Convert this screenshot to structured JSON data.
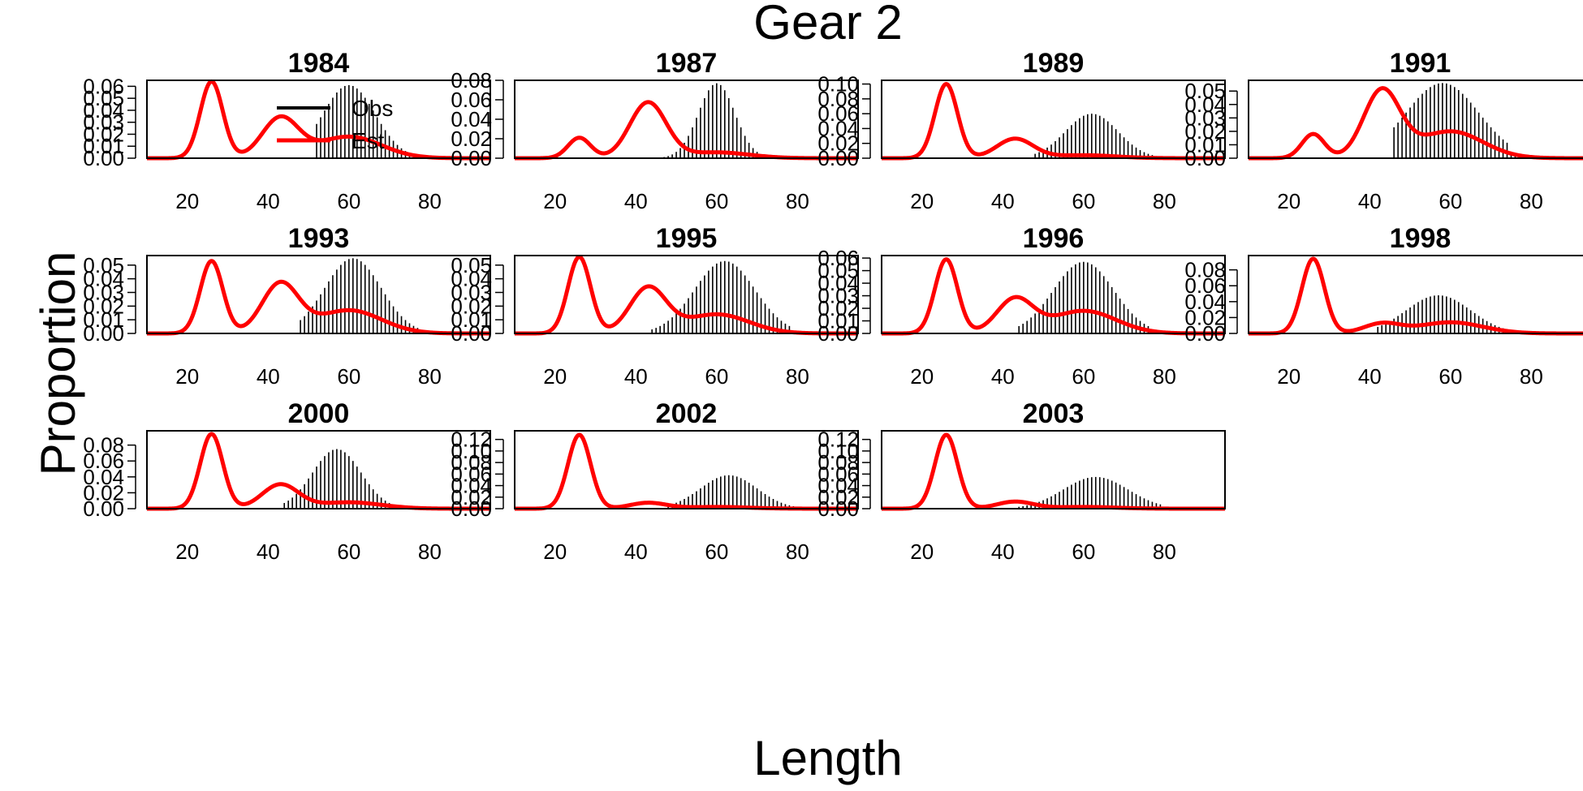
{
  "chart_data": {
    "type": "bar+line",
    "title": "Gear 2",
    "xlabel": "Length",
    "ylabel": "Proportion",
    "xlim": [
      10,
      95
    ],
    "x_ticks": [
      20,
      40,
      60,
      80
    ],
    "grid": false,
    "legend": {
      "placement": "top-right of first panel",
      "entries": [
        {
          "label": "Obs",
          "kind": "bar",
          "color": "#000000"
        },
        {
          "label": "Est",
          "kind": "line",
          "color": "#ff0000"
        }
      ]
    },
    "colors": {
      "observed": "#000000",
      "estimated": "#ff0000"
    },
    "estimated_components": [
      {
        "name": "",
        "mean": 26,
        "sd": 2.8
      },
      {
        "name": "",
        "mean": 43,
        "sd": 4.5
      },
      {
        "name": "",
        "mean": 60,
        "sd": 8
      }
    ],
    "panels": [
      {
        "year": "1984",
        "ylim": [
          0,
          0.065
        ],
        "y_ticks": [
          "0.00",
          "0.01",
          "0.02",
          "0.03",
          "0.04",
          "0.05",
          "0.06"
        ],
        "observed": {
          "shape": "gaussian",
          "mean": 60,
          "sd": 6.5,
          "peak": 0.061,
          "x_min": 52,
          "x_max": 88
        },
        "estimated": {
          "peak_values": [
            0.064,
            0.033,
            0.018
          ]
        }
      },
      {
        "year": "1987",
        "ylim": [
          0,
          0.08
        ],
        "y_ticks": [
          "0.00",
          "0.02",
          "0.04",
          "0.06",
          "0.08"
        ],
        "observed": {
          "shape": "gaussian",
          "mean": 60,
          "sd": 4.5,
          "peak": 0.077,
          "x_min": 44,
          "x_max": 92
        },
        "estimated": {
          "peak_values": [
            0.021,
            0.057,
            0.006
          ]
        }
      },
      {
        "year": "1989",
        "ylim": [
          0,
          0.105
        ],
        "y_ticks": [
          "0.00",
          "0.02",
          "0.04",
          "0.06",
          "0.08",
          "0.10"
        ],
        "observed": {
          "shape": "gaussian",
          "mean": 62,
          "sd": 6.5,
          "peak": 0.06,
          "x_min": 48,
          "x_max": 82
        },
        "estimated": {
          "peak_values": [
            0.1,
            0.026,
            0.004
          ]
        }
      },
      {
        "year": "1991",
        "ylim": [
          0,
          0.058
        ],
        "y_ticks": [
          "0.00",
          "0.01",
          "0.02",
          "0.03",
          "0.04",
          "0.05"
        ],
        "observed": {
          "shape": "gaussian",
          "mean": 58,
          "sd": 9,
          "peak": 0.056,
          "x_min": 46,
          "x_max": 84
        },
        "estimated": {
          "peak_values": [
            0.018,
            0.05,
            0.02
          ]
        }
      },
      {
        "year": "1993",
        "ylim": [
          0,
          0.057
        ],
        "y_ticks": [
          "0.00",
          "0.01",
          "0.02",
          "0.03",
          "0.04",
          "0.05"
        ],
        "observed": {
          "shape": "gaussian",
          "mean": 61,
          "sd": 7,
          "peak": 0.055,
          "x_min": 48,
          "x_max": 86
        },
        "estimated": {
          "peak_values": [
            0.053,
            0.036,
            0.017
          ]
        }
      },
      {
        "year": "1995",
        "ylim": [
          0,
          0.057
        ],
        "y_ticks": [
          "0.00",
          "0.01",
          "0.02",
          "0.03",
          "0.04",
          "0.05"
        ],
        "observed": {
          "shape": "gaussian",
          "mean": 62,
          "sd": 7.5,
          "peak": 0.053,
          "x_min": 44,
          "x_max": 88
        },
        "estimated": {
          "peak_values": [
            0.056,
            0.033,
            0.014
          ]
        }
      },
      {
        "year": "1996",
        "ylim": [
          0,
          0.062
        ],
        "y_ticks": [
          "0.00",
          "0.01",
          "0.02",
          "0.03",
          "0.04",
          "0.05",
          "0.06"
        ],
        "observed": {
          "shape": "gaussian",
          "mean": 60,
          "sd": 7.5,
          "peak": 0.057,
          "x_min": 44,
          "x_max": 88
        },
        "estimated": {
          "peak_values": [
            0.059,
            0.027,
            0.018
          ]
        }
      },
      {
        "year": "1998",
        "ylim": [
          0,
          0.098
        ],
        "y_ticks": [
          "0.00",
          "0.02",
          "0.04",
          "0.06",
          "0.08"
        ],
        "observed": {
          "shape": "gaussian",
          "mean": 57,
          "sd": 8,
          "peak": 0.048,
          "x_min": 42,
          "x_max": 82
        },
        "estimated": {
          "peak_values": [
            0.094,
            0.012,
            0.014
          ]
        }
      },
      {
        "year": "2000",
        "ylim": [
          0,
          0.098
        ],
        "y_ticks": [
          "0.00",
          "0.02",
          "0.04",
          "0.06",
          "0.08"
        ],
        "observed": {
          "shape": "gaussian",
          "mean": 57,
          "sd": 6,
          "peak": 0.075,
          "x_min": 44,
          "x_max": 90
        },
        "estimated": {
          "peak_values": [
            0.094,
            0.03,
            0.008
          ]
        }
      },
      {
        "year": "2002",
        "ylim": [
          0,
          0.135
        ],
        "y_ticks": [
          "0.00",
          "0.02",
          "0.04",
          "0.06",
          "0.08",
          "0.10",
          "0.12"
        ],
        "observed": {
          "shape": "gaussian",
          "mean": 63,
          "sd": 7,
          "peak": 0.058,
          "x_min": 48,
          "x_max": 86
        },
        "estimated": {
          "peak_values": [
            0.128,
            0.01,
            0.003
          ]
        }
      },
      {
        "year": "2003",
        "ylim": [
          0,
          0.135
        ],
        "y_ticks": [
          "0.00",
          "0.02",
          "0.04",
          "0.06",
          "0.08",
          "0.10",
          "0.12"
        ],
        "observed": {
          "shape": "gaussian",
          "mean": 63,
          "sd": 8,
          "peak": 0.055,
          "x_min": 44,
          "x_max": 86
        },
        "estimated": {
          "peak_values": [
            0.128,
            0.012,
            0.003
          ]
        }
      }
    ]
  }
}
